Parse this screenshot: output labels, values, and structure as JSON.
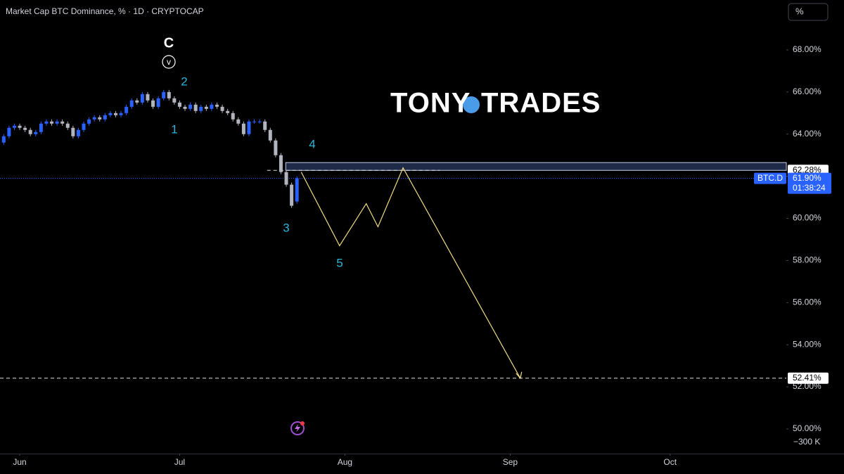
{
  "chart_data": {
    "type": "candlestick",
    "title": "Market Cap BTC Dominance, % · 1D · CRYPTOCAP",
    "scale_button": "%",
    "volume_label": "−300 K",
    "up_color": "#2962ff",
    "down_color": "#b2b5be",
    "grid": false,
    "xlim": [
      -3.7,
      143.8
    ],
    "xticks": [
      {
        "value": 0,
        "label": "Jun"
      },
      {
        "value": 30,
        "label": "Jul"
      },
      {
        "value": 61,
        "label": "Aug"
      },
      {
        "value": 92,
        "label": "Sep"
      },
      {
        "value": 122,
        "label": "Oct"
      }
    ],
    "ylim": [
      48.83,
      70.37
    ],
    "yticks": [
      {
        "value": 50,
        "label": "50.00%"
      },
      {
        "value": 52,
        "label": "52.00%"
      },
      {
        "value": 54,
        "label": "54.00%"
      },
      {
        "value": 56,
        "label": "56.00%"
      },
      {
        "value": 58,
        "label": "58.00%"
      },
      {
        "value": 60,
        "label": "60.00%"
      },
      {
        "value": 62,
        "label": "62.00%"
      },
      {
        "value": 64,
        "label": "64.00%"
      },
      {
        "value": 66,
        "label": "66.00%"
      },
      {
        "value": 68,
        "label": "68.00%"
      }
    ],
    "x": [
      -3,
      -2,
      -1,
      0,
      1,
      2,
      3,
      4,
      5,
      6,
      7,
      8,
      9,
      10,
      11,
      12,
      13,
      14,
      15,
      16,
      17,
      18,
      19,
      20,
      21,
      22,
      23,
      24,
      25,
      26,
      27,
      28,
      29,
      30,
      31,
      32,
      33,
      34,
      35,
      36,
      37,
      38,
      39,
      40,
      41,
      42,
      43,
      44,
      45,
      46,
      47,
      48,
      49,
      50,
      51,
      52
    ],
    "open": [
      63.6,
      63.9,
      64.3,
      64.4,
      64.3,
      64.2,
      64.0,
      64.1,
      64.5,
      64.6,
      64.5,
      64.6,
      64.5,
      64.3,
      63.9,
      64.2,
      64.5,
      64.7,
      64.8,
      64.7,
      64.9,
      65.0,
      64.9,
      65.0,
      65.3,
      65.6,
      65.5,
      65.9,
      65.6,
      65.3,
      65.7,
      66.0,
      65.7,
      65.5,
      65.3,
      65.2,
      65.4,
      65.1,
      65.3,
      65.2,
      65.4,
      65.3,
      65.1,
      65.0,
      64.7,
      64.5,
      64.0,
      64.6,
      64.6,
      64.6,
      64.2,
      63.7,
      63.0,
      62.2,
      61.6,
      60.8
    ],
    "high": [
      64.0,
      64.4,
      64.5,
      64.5,
      64.4,
      64.3,
      64.2,
      64.6,
      64.7,
      64.7,
      64.7,
      64.7,
      64.6,
      64.4,
      64.3,
      64.6,
      64.8,
      64.9,
      64.9,
      65.0,
      65.1,
      65.1,
      65.1,
      65.4,
      65.7,
      65.7,
      66.0,
      66.0,
      65.7,
      65.8,
      66.1,
      66.1,
      65.8,
      65.6,
      65.4,
      65.5,
      65.5,
      65.4,
      65.4,
      65.5,
      65.5,
      65.4,
      65.2,
      65.1,
      64.8,
      64.6,
      64.7,
      64.7,
      64.7,
      64.7,
      64.3,
      63.8,
      63.1,
      62.3,
      61.7,
      62.0
    ],
    "low": [
      63.5,
      63.8,
      64.2,
      64.2,
      64.1,
      63.9,
      63.9,
      64.0,
      64.4,
      64.4,
      64.4,
      64.4,
      64.2,
      63.8,
      63.8,
      64.1,
      64.4,
      64.6,
      64.6,
      64.6,
      64.8,
      64.8,
      64.8,
      64.9,
      65.2,
      65.4,
      65.4,
      65.5,
      65.2,
      65.2,
      65.6,
      65.6,
      65.4,
      65.2,
      65.1,
      65.1,
      65.0,
      65.0,
      65.1,
      65.1,
      65.2,
      65.0,
      64.9,
      64.6,
      64.4,
      63.9,
      63.9,
      64.5,
      64.5,
      64.1,
      63.6,
      62.9,
      62.1,
      61.5,
      60.5,
      60.7
    ],
    "close": [
      63.9,
      64.3,
      64.4,
      64.3,
      64.2,
      64.0,
      64.1,
      64.5,
      64.6,
      64.5,
      64.6,
      64.5,
      64.3,
      63.9,
      64.2,
      64.5,
      64.7,
      64.8,
      64.7,
      64.9,
      65.0,
      64.9,
      65.0,
      65.3,
      65.6,
      65.5,
      65.9,
      65.6,
      65.3,
      65.7,
      66.0,
      65.7,
      65.5,
      65.3,
      65.2,
      65.4,
      65.1,
      65.3,
      65.2,
      65.4,
      65.3,
      65.1,
      65.0,
      64.7,
      64.5,
      64.0,
      64.6,
      64.6,
      64.6,
      64.2,
      63.7,
      63.0,
      62.2,
      61.6,
      60.6,
      61.9
    ],
    "watermark": [
      "TONY",
      "TRADES"
    ],
    "annotations": [
      "C",
      "v",
      "2",
      "1",
      "4",
      "3",
      "5"
    ],
    "zone": {
      "low": 62.28,
      "high": 62.65,
      "x": [
        49.9,
        143.8
      ],
      "color": "#1e2a48"
    },
    "levels": [
      {
        "value": 62.28,
        "label": "62.28%",
        "x": [
          46.4,
          78.8
        ]
      },
      {
        "value": 52.41,
        "label": "52.41%",
        "x": [
          -3.7,
          143.8
        ]
      }
    ],
    "current": {
      "symbol": "BTC.D",
      "value": 61.9,
      "label": "61.90%",
      "countdown": "01:38:24",
      "color": "#2962ff"
    },
    "projection": {
      "x": [
        52.8,
        60.0,
        65.0,
        67.2,
        71.9,
        93.9
      ],
      "values": [
        62.2,
        58.7,
        60.7,
        59.6,
        62.4,
        52.41
      ],
      "color": "#f0dc82"
    }
  }
}
